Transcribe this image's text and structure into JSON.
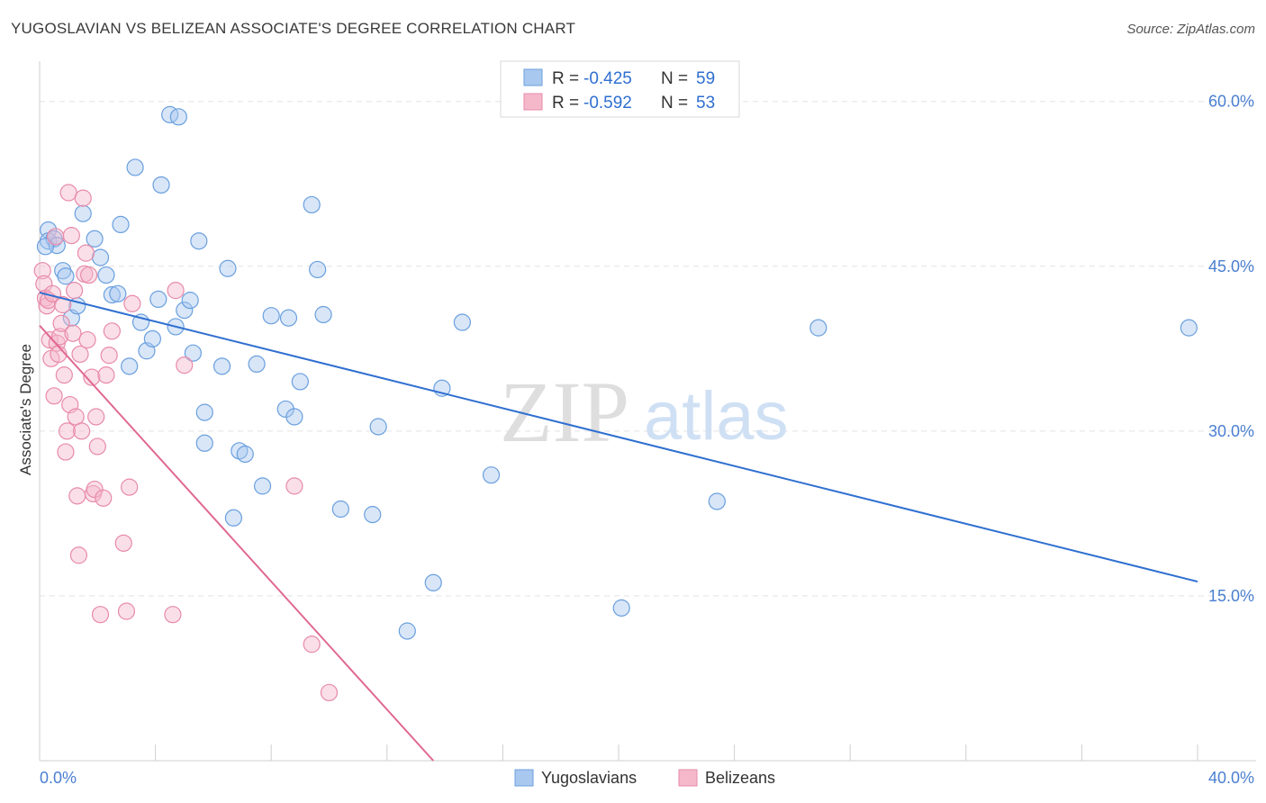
{
  "header": {
    "title": "YUGOSLAVIAN VS BELIZEAN ASSOCIATE'S DEGREE CORRELATION CHART",
    "source": "Source: ZipAtlas.com"
  },
  "watermark": {
    "zip": "ZIP",
    "atlas": "atlas"
  },
  "colors": {
    "blue_fill": "#a9c8ef",
    "blue_stroke": "#6a9fde",
    "blue_line": "#2f6fd0",
    "pink_fill": "#f5b8cb",
    "pink_stroke": "#e88aa8",
    "pink_line": "#e06890",
    "grid": "#e3e3e3",
    "axis_label": "#4a7fd0"
  },
  "legend_box": {
    "rows": [
      {
        "r_label": "R = ",
        "r_value": "-0.425",
        "n_label": "N = ",
        "n_value": "59",
        "color": "blue"
      },
      {
        "r_label": "R = ",
        "r_value": "-0.592",
        "n_label": "N = ",
        "n_value": "53",
        "color": "pink"
      }
    ]
  },
  "bottom_legend": [
    {
      "label": "Yugoslavians",
      "color": "blue"
    },
    {
      "label": "Belizeans",
      "color": "pink"
    }
  ],
  "chart_data": {
    "type": "scatter",
    "title": "YUGOSLAVIAN VS BELIZEAN ASSOCIATE'S DEGREE CORRELATION CHART",
    "xlabel": "",
    "ylabel": "Associate's Degree",
    "xlim": [
      0,
      40
    ],
    "ylim": [
      0,
      63.5
    ],
    "x_tick_labels": [
      {
        "value": 0,
        "label": "0.0%"
      },
      {
        "value": 40,
        "label": "40.0%"
      }
    ],
    "y_tick_labels": [
      {
        "value": 15,
        "label": "15.0%"
      },
      {
        "value": 30,
        "label": "30.0%"
      },
      {
        "value": 45,
        "label": "45.0%"
      },
      {
        "value": 60,
        "label": "60.0%"
      }
    ],
    "y_gridlines": [
      15,
      30,
      45,
      60
    ],
    "legend_position": "top-center",
    "series": [
      {
        "name": "Yugoslavians",
        "color": "blue",
        "r": -0.425,
        "n": 59,
        "trend": {
          "x": [
            0,
            40
          ],
          "y": [
            42.6,
            16.3
          ]
        },
        "points": [
          [
            0.3,
            48.3
          ],
          [
            0.3,
            47.3
          ],
          [
            0.5,
            47.5
          ],
          [
            0.6,
            46.9
          ],
          [
            0.8,
            44.6
          ],
          [
            0.9,
            44.1
          ],
          [
            1.1,
            40.3
          ],
          [
            1.3,
            41.4
          ],
          [
            1.5,
            49.8
          ],
          [
            1.9,
            47.5
          ],
          [
            2.1,
            45.8
          ],
          [
            2.3,
            44.2
          ],
          [
            2.5,
            42.4
          ],
          [
            2.7,
            42.5
          ],
          [
            2.8,
            48.8
          ],
          [
            3.1,
            35.9
          ],
          [
            3.3,
            54.0
          ],
          [
            3.5,
            39.9
          ],
          [
            3.7,
            37.3
          ],
          [
            3.9,
            38.4
          ],
          [
            4.1,
            42.0
          ],
          [
            4.2,
            52.4
          ],
          [
            4.5,
            58.8
          ],
          [
            4.8,
            58.6
          ],
          [
            4.7,
            39.5
          ],
          [
            5.0,
            41.0
          ],
          [
            5.2,
            41.9
          ],
          [
            5.3,
            37.1
          ],
          [
            5.5,
            47.3
          ],
          [
            5.7,
            31.7
          ],
          [
            5.7,
            28.9
          ],
          [
            6.3,
            35.9
          ],
          [
            6.5,
            44.8
          ],
          [
            6.7,
            22.1
          ],
          [
            6.9,
            28.2
          ],
          [
            7.1,
            27.9
          ],
          [
            7.5,
            36.1
          ],
          [
            7.7,
            25.0
          ],
          [
            8.0,
            40.5
          ],
          [
            8.6,
            40.3
          ],
          [
            8.5,
            32.0
          ],
          [
            8.8,
            31.3
          ],
          [
            9.0,
            34.5
          ],
          [
            9.4,
            50.6
          ],
          [
            9.6,
            44.7
          ],
          [
            9.8,
            40.6
          ],
          [
            10.4,
            22.9
          ],
          [
            11.5,
            22.4
          ],
          [
            11.7,
            30.4
          ],
          [
            12.7,
            11.8
          ],
          [
            13.6,
            16.2
          ],
          [
            13.9,
            33.9
          ],
          [
            14.6,
            39.9
          ],
          [
            15.6,
            26.0
          ],
          [
            20.1,
            13.9
          ],
          [
            23.4,
            23.6
          ],
          [
            26.9,
            39.4
          ],
          [
            39.7,
            39.4
          ],
          [
            0.2,
            46.8
          ]
        ]
      },
      {
        "name": "Belizeans",
        "color": "pink",
        "r": -0.592,
        "n": 53,
        "trend": {
          "x": [
            0,
            13.6
          ],
          "y": [
            39.6,
            0
          ]
        },
        "points": [
          [
            0.1,
            44.6
          ],
          [
            0.15,
            43.4
          ],
          [
            0.2,
            42.1
          ],
          [
            0.25,
            41.4
          ],
          [
            0.3,
            41.9
          ],
          [
            0.35,
            38.3
          ],
          [
            0.4,
            36.6
          ],
          [
            0.5,
            33.2
          ],
          [
            0.6,
            38.0
          ],
          [
            0.65,
            37.0
          ],
          [
            0.7,
            38.6
          ],
          [
            0.75,
            39.8
          ],
          [
            0.8,
            41.5
          ],
          [
            0.85,
            35.1
          ],
          [
            0.9,
            28.1
          ],
          [
            0.95,
            30.0
          ],
          [
            1.0,
            51.7
          ],
          [
            1.1,
            47.8
          ],
          [
            1.05,
            32.4
          ],
          [
            1.15,
            38.9
          ],
          [
            1.2,
            42.8
          ],
          [
            1.25,
            31.3
          ],
          [
            1.3,
            24.1
          ],
          [
            1.35,
            18.7
          ],
          [
            1.4,
            37.0
          ],
          [
            1.45,
            30.0
          ],
          [
            1.5,
            51.2
          ],
          [
            1.55,
            44.3
          ],
          [
            1.6,
            46.2
          ],
          [
            1.65,
            38.3
          ],
          [
            1.7,
            44.2
          ],
          [
            1.8,
            34.9
          ],
          [
            1.85,
            24.3
          ],
          [
            1.9,
            24.7
          ],
          [
            1.95,
            31.3
          ],
          [
            2.0,
            28.6
          ],
          [
            2.1,
            13.3
          ],
          [
            2.2,
            23.9
          ],
          [
            2.3,
            35.1
          ],
          [
            2.4,
            36.9
          ],
          [
            2.5,
            39.1
          ],
          [
            2.9,
            19.8
          ],
          [
            3.0,
            13.6
          ],
          [
            3.1,
            24.9
          ],
          [
            3.2,
            41.6
          ],
          [
            4.6,
            13.3
          ],
          [
            4.7,
            42.8
          ],
          [
            5.0,
            36.0
          ],
          [
            8.8,
            25.0
          ],
          [
            9.4,
            10.6
          ],
          [
            10.0,
            6.2
          ],
          [
            0.45,
            42.5
          ],
          [
            0.55,
            47.7
          ]
        ]
      }
    ]
  }
}
